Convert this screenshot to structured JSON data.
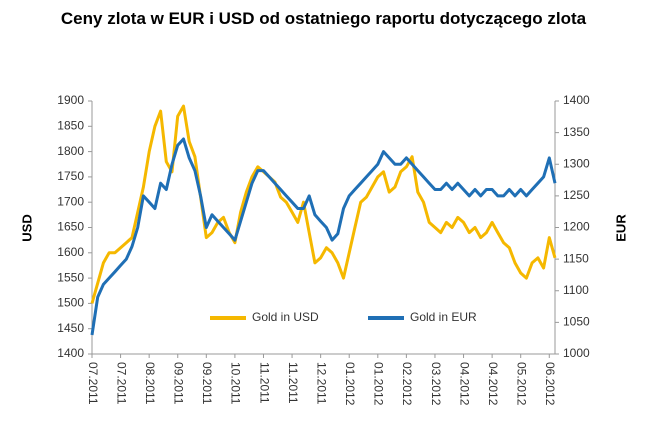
{
  "chart_data": {
    "type": "line",
    "title": "Ceny zlota w EUR i USD od ostatniego raportu dotyczącego zlota",
    "y_label": "USD",
    "y2_label": "EUR",
    "categories": [
      "07.2011",
      null,
      null,
      null,
      null,
      "07.2011",
      null,
      null,
      null,
      null,
      "08.2011",
      null,
      null,
      null,
      null,
      "09.2011",
      null,
      null,
      null,
      null,
      "09.2011",
      null,
      null,
      null,
      null,
      "10.2011",
      null,
      null,
      null,
      null,
      "11.2011",
      null,
      null,
      null,
      null,
      "11.2011",
      null,
      null,
      null,
      null,
      "12.2011",
      null,
      null,
      null,
      null,
      "01.2012",
      null,
      null,
      null,
      null,
      "01.2012",
      null,
      null,
      null,
      null,
      "02.2012",
      null,
      null,
      null,
      null,
      "03.2012",
      null,
      null,
      null,
      null,
      "04.2012",
      null,
      null,
      null,
      null,
      "04.2012",
      null,
      null,
      null,
      null,
      "05.2012",
      null,
      null,
      null,
      null,
      "06.2012",
      null
    ],
    "series": [
      {
        "name": "Gold in USD",
        "color": "#f5b800",
        "axis": "y",
        "values": [
          1500,
          1540,
          1580,
          1600,
          1600,
          1610,
          1620,
          1630,
          1680,
          1730,
          1800,
          1850,
          1880,
          1780,
          1760,
          1870,
          1890,
          1820,
          1790,
          1710,
          1630,
          1640,
          1660,
          1670,
          1640,
          1620,
          1680,
          1720,
          1750,
          1770,
          1760,
          1750,
          1740,
          1710,
          1700,
          1680,
          1660,
          1700,
          1640,
          1580,
          1590,
          1610,
          1600,
          1580,
          1550,
          1600,
          1650,
          1700,
          1710,
          1730,
          1750,
          1760,
          1720,
          1730,
          1760,
          1770,
          1790,
          1720,
          1700,
          1660,
          1650,
          1640,
          1660,
          1650,
          1670,
          1660,
          1640,
          1650,
          1630,
          1640,
          1660,
          1640,
          1620,
          1610,
          1580,
          1560,
          1550,
          1580,
          1590,
          1570,
          1630,
          1590
        ]
      },
      {
        "name": "Gold in EUR",
        "color": "#1f6fb5",
        "axis": "y2",
        "values": [
          1030,
          1090,
          1110,
          1120,
          1130,
          1140,
          1150,
          1170,
          1200,
          1250,
          1240,
          1230,
          1270,
          1260,
          1300,
          1330,
          1340,
          1310,
          1290,
          1250,
          1200,
          1220,
          1210,
          1200,
          1190,
          1180,
          1210,
          1240,
          1270,
          1290,
          1290,
          1280,
          1270,
          1260,
          1250,
          1240,
          1230,
          1230,
          1250,
          1220,
          1210,
          1200,
          1180,
          1190,
          1230,
          1250,
          1260,
          1270,
          1280,
          1290,
          1300,
          1320,
          1310,
          1300,
          1300,
          1310,
          1300,
          1290,
          1280,
          1270,
          1260,
          1260,
          1270,
          1260,
          1270,
          1260,
          1250,
          1260,
          1250,
          1260,
          1260,
          1250,
          1250,
          1260,
          1250,
          1260,
          1250,
          1260,
          1270,
          1280,
          1310,
          1270
        ]
      }
    ],
    "ylim": [
      1400,
      1900
    ],
    "yticks": [
      1400,
      1450,
      1500,
      1550,
      1600,
      1650,
      1700,
      1750,
      1800,
      1850,
      1900
    ],
    "y2lim": [
      1000,
      1400
    ],
    "y2ticks": [
      1000,
      1050,
      1100,
      1150,
      1200,
      1250,
      1300,
      1350,
      1400
    ],
    "grid": false,
    "legend": "bottom"
  }
}
